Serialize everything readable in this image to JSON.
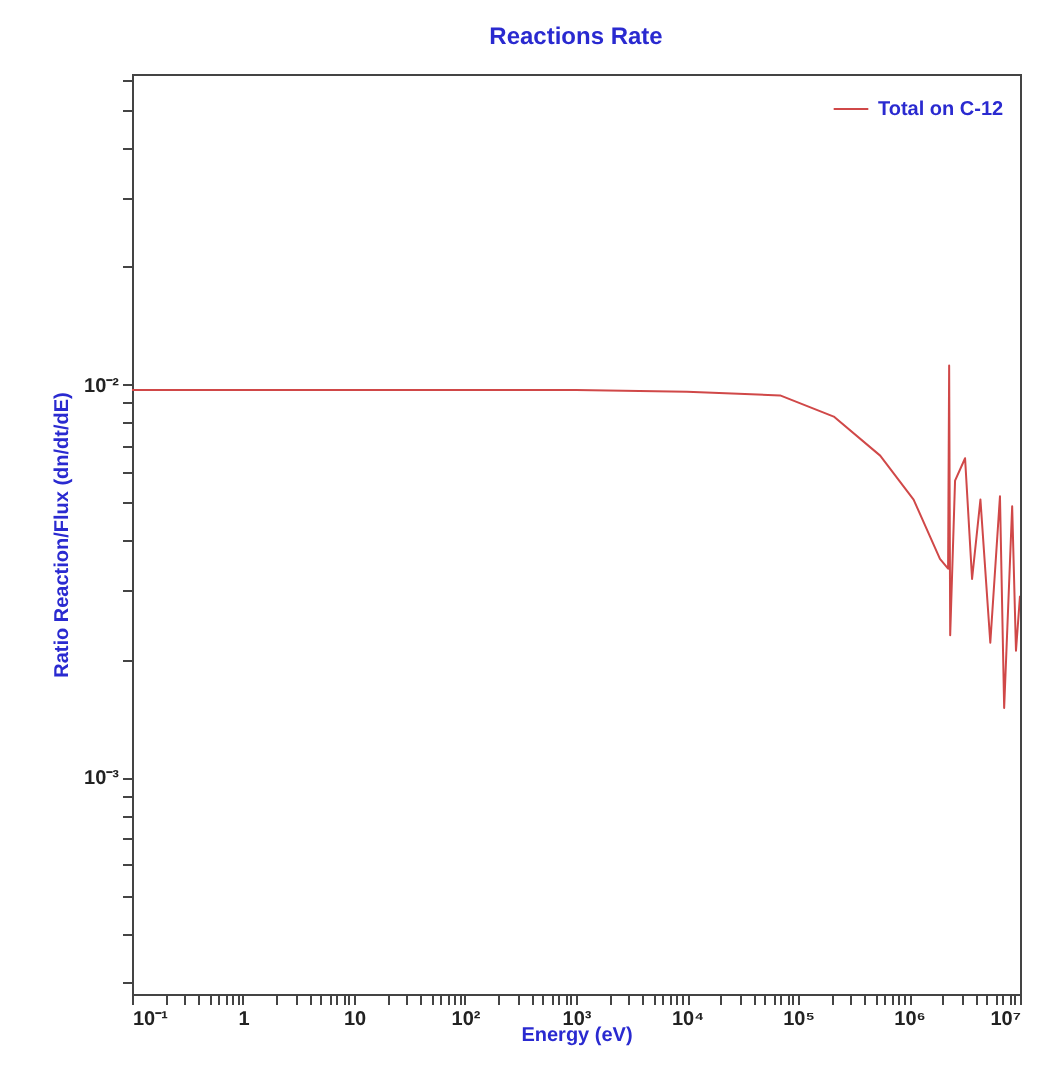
{
  "chart_data": {
    "type": "line",
    "title": "Reactions Rate",
    "xlabel": "Energy (eV)",
    "ylabel": "Ratio Reaction/Flux (dn/dt/dE)",
    "log": "xy",
    "grid": false,
    "legend": "top right",
    "marker": "none",
    "line_style": "solid",
    "xlim": [
      0.1,
      10000000
    ],
    "ylim": [
      0.00028,
      0.062
    ],
    "xticks": [
      {
        "value": 0.1,
        "label": "10⁻¹"
      },
      {
        "value": 0.2,
        "label": null
      },
      {
        "value": 0.3,
        "label": null
      },
      {
        "value": 0.4,
        "label": null
      },
      {
        "value": 0.5,
        "label": null
      },
      {
        "value": 0.6,
        "label": null
      },
      {
        "value": 0.7,
        "label": null
      },
      {
        "value": 0.8,
        "label": null
      },
      {
        "value": 0.9,
        "label": null
      },
      {
        "value": 1,
        "label": "1"
      },
      {
        "value": 2,
        "label": null
      },
      {
        "value": 3,
        "label": null
      },
      {
        "value": 4,
        "label": null
      },
      {
        "value": 5,
        "label": null
      },
      {
        "value": 6,
        "label": null
      },
      {
        "value": 7,
        "label": null
      },
      {
        "value": 8,
        "label": null
      },
      {
        "value": 9,
        "label": null
      },
      {
        "value": 10,
        "label": "10"
      },
      {
        "value": 20,
        "label": null
      },
      {
        "value": 30,
        "label": null
      },
      {
        "value": 40,
        "label": null
      },
      {
        "value": 50,
        "label": null
      },
      {
        "value": 60,
        "label": null
      },
      {
        "value": 70,
        "label": null
      },
      {
        "value": 80,
        "label": null
      },
      {
        "value": 90,
        "label": null
      },
      {
        "value": 100,
        "label": "10²"
      },
      {
        "value": 200,
        "label": null
      },
      {
        "value": 300,
        "label": null
      },
      {
        "value": 400,
        "label": null
      },
      {
        "value": 500,
        "label": null
      },
      {
        "value": 600,
        "label": null
      },
      {
        "value": 700,
        "label": null
      },
      {
        "value": 800,
        "label": null
      },
      {
        "value": 900,
        "label": null
      },
      {
        "value": 1000,
        "label": "10³"
      },
      {
        "value": 2000,
        "label": null
      },
      {
        "value": 3000,
        "label": null
      },
      {
        "value": 4000,
        "label": null
      },
      {
        "value": 5000,
        "label": null
      },
      {
        "value": 6000,
        "label": null
      },
      {
        "value": 7000,
        "label": null
      },
      {
        "value": 8000,
        "label": null
      },
      {
        "value": 9000,
        "label": null
      },
      {
        "value": 10000,
        "label": "10⁴"
      },
      {
        "value": 20000,
        "label": null
      },
      {
        "value": 30000,
        "label": null
      },
      {
        "value": 40000,
        "label": null
      },
      {
        "value": 50000,
        "label": null
      },
      {
        "value": 60000,
        "label": null
      },
      {
        "value": 70000,
        "label": null
      },
      {
        "value": 80000,
        "label": null
      },
      {
        "value": 90000,
        "label": null
      },
      {
        "value": 100000,
        "label": "10⁵"
      },
      {
        "value": 200000,
        "label": null
      },
      {
        "value": 300000,
        "label": null
      },
      {
        "value": 400000,
        "label": null
      },
      {
        "value": 500000,
        "label": null
      },
      {
        "value": 600000,
        "label": null
      },
      {
        "value": 700000,
        "label": null
      },
      {
        "value": 800000,
        "label": null
      },
      {
        "value": 900000,
        "label": null
      },
      {
        "value": 1000000,
        "label": "10⁶"
      },
      {
        "value": 2000000,
        "label": null
      },
      {
        "value": 3000000,
        "label": null
      },
      {
        "value": 4000000,
        "label": null
      },
      {
        "value": 5000000,
        "label": null
      },
      {
        "value": 6000000,
        "label": null
      },
      {
        "value": 7000000,
        "label": null
      },
      {
        "value": 8000000,
        "label": null
      },
      {
        "value": 9000000,
        "label": null
      },
      {
        "value": 10000000,
        "label": "10⁷"
      }
    ],
    "yticks": [
      {
        "value": 0.0003,
        "label": null
      },
      {
        "value": 0.0004,
        "label": null
      },
      {
        "value": 0.0005,
        "label": null
      },
      {
        "value": 0.0006,
        "label": null
      },
      {
        "value": 0.0007,
        "label": null
      },
      {
        "value": 0.0008,
        "label": null
      },
      {
        "value": 0.0009,
        "label": null
      },
      {
        "value": 0.001,
        "label": "10⁻³"
      },
      {
        "value": 0.002,
        "label": null
      },
      {
        "value": 0.003,
        "label": null
      },
      {
        "value": 0.004,
        "label": null
      },
      {
        "value": 0.005,
        "label": null
      },
      {
        "value": 0.006,
        "label": null
      },
      {
        "value": 0.007,
        "label": null
      },
      {
        "value": 0.008,
        "label": null
      },
      {
        "value": 0.009,
        "label": null
      },
      {
        "value": 0.01,
        "label": "10⁻²"
      },
      {
        "value": 0.02,
        "label": null
      },
      {
        "value": 0.03,
        "label": null
      },
      {
        "value": 0.04,
        "label": null
      },
      {
        "value": 0.05,
        "label": null
      },
      {
        "value": 0.06,
        "label": null
      }
    ],
    "series": [
      {
        "name": "Total on C-12",
        "color": "#d04848",
        "x": [
          0.1,
          1,
          10,
          100,
          1000,
          10000,
          69000,
          210000,
          550000,
          1100000,
          1900000,
          2250000,
          2300000,
          2350000,
          2600000,
          3200000,
          3700000,
          4400000,
          5400000,
          6600000,
          7200000,
          8500000,
          9200000,
          10000000
        ],
        "values": [
          0.0097,
          0.0097,
          0.0097,
          0.0097,
          0.0097,
          0.0096,
          0.0094,
          0.0083,
          0.0066,
          0.0051,
          0.0036,
          0.0034,
          0.0112,
          0.0023,
          0.0057,
          0.0065,
          0.0032,
          0.0051,
          0.0022,
          0.0052,
          0.0015,
          0.0049,
          0.0021,
          0.0029
        ]
      }
    ]
  }
}
